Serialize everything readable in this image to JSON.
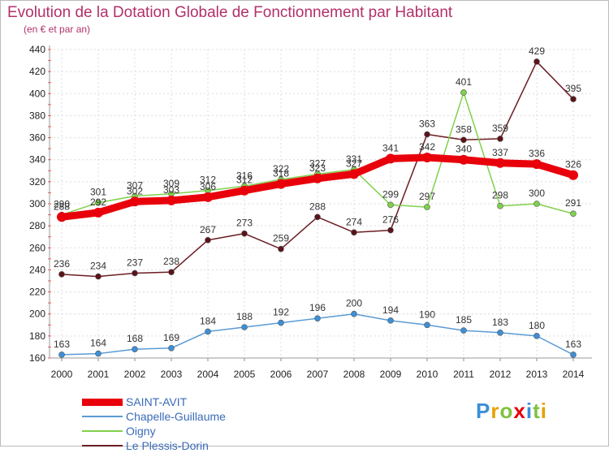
{
  "page": {
    "title": "Evolution de la Dotation Globale de Fonctionnement par Habitant",
    "subtitle": "(en € et par an)"
  },
  "brand": {
    "logo_text": "Proxiti"
  },
  "chart_data": {
    "type": "line",
    "title": "Evolution de la Dotation Globale de Fonctionnement par Habitant",
    "subtitle": "(en € et par an)",
    "xlabel": "",
    "ylabel": "",
    "x": [
      "2000",
      "2001",
      "2002",
      "2003",
      "2004",
      "2005",
      "2006",
      "2007",
      "2008",
      "2009",
      "2010",
      "2011",
      "2012",
      "2013",
      "2014"
    ],
    "ylim": [
      160,
      440
    ],
    "yticks": [
      160,
      180,
      200,
      220,
      240,
      260,
      280,
      300,
      320,
      340,
      360,
      380,
      400,
      420,
      440
    ],
    "grid": true,
    "legend_position": "bottom-left",
    "series": [
      {
        "name": "SAINT-AVIT",
        "color": "#e8000b",
        "values": [
          288,
          292,
          302,
          303,
          306,
          312,
          318,
          323,
          327,
          341,
          342,
          340,
          337,
          336,
          326
        ]
      },
      {
        "name": "Chapelle-Guillaume",
        "color": "#5b9bd5",
        "values": [
          163,
          164,
          168,
          169,
          184,
          188,
          192,
          196,
          200,
          194,
          190,
          185,
          183,
          180,
          163
        ]
      },
      {
        "name": "Oigny",
        "color": "#7fd14b",
        "values": [
          290,
          301,
          307,
          309,
          312,
          316,
          322,
          327,
          331,
          299,
          297,
          401,
          298,
          300,
          291
        ]
      },
      {
        "name": "Le Plessis-Dorin",
        "color": "#6b1c24",
        "values": [
          236,
          234,
          237,
          238,
          267,
          273,
          259,
          288,
          274,
          276,
          363,
          358,
          359,
          429,
          395
        ]
      }
    ]
  }
}
